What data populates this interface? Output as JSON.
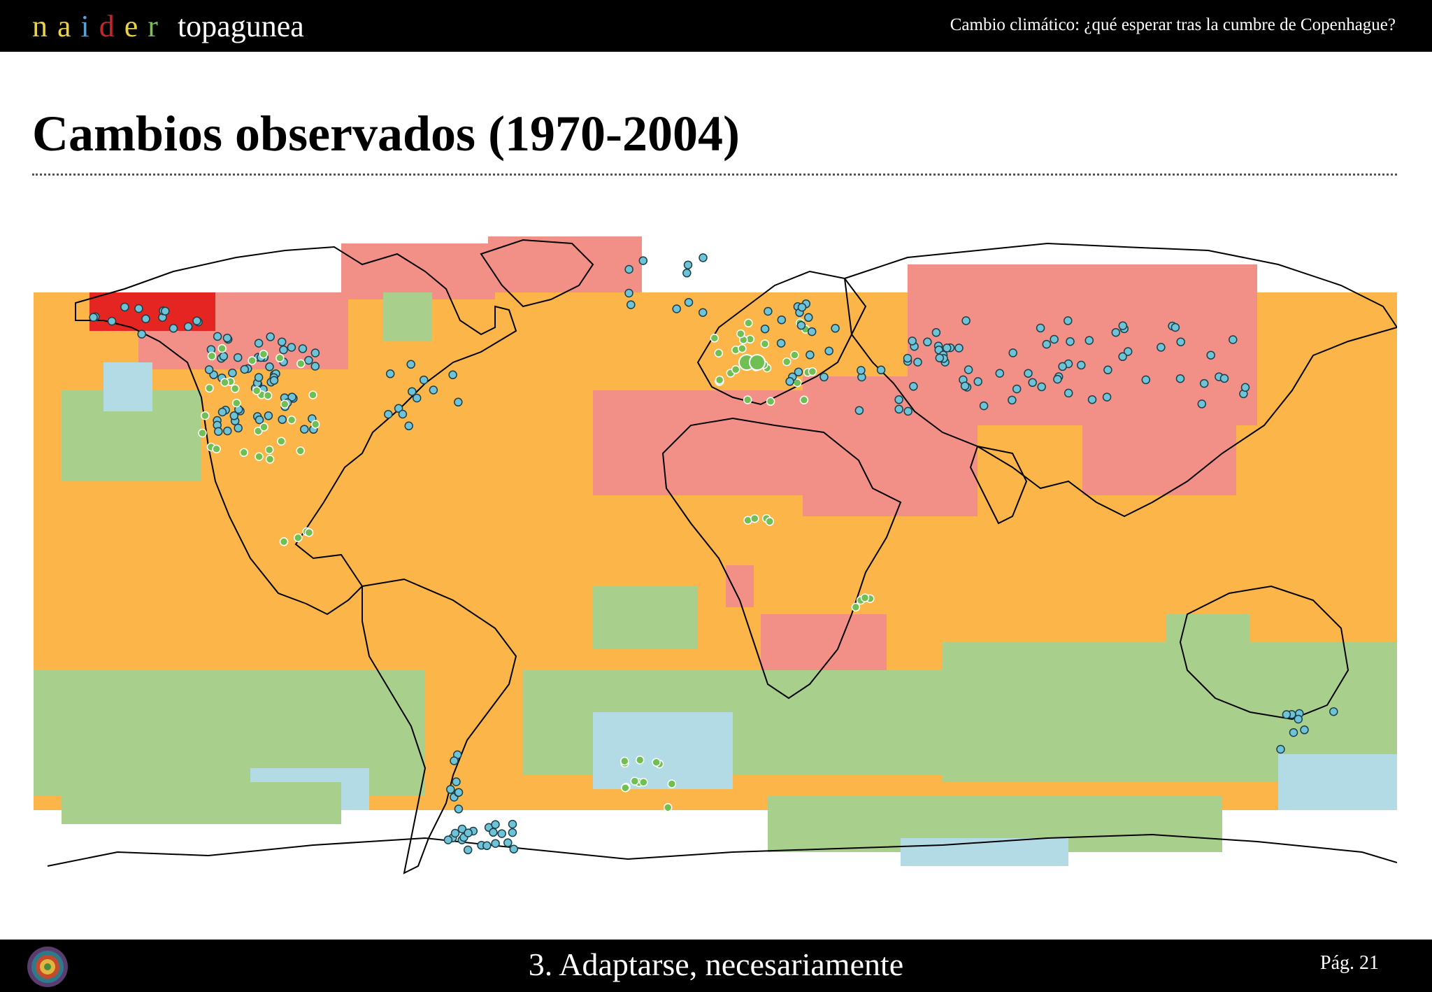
{
  "header": {
    "brand_letters": [
      {
        "char": "n",
        "color": "#e8d24a"
      },
      {
        "char": "a",
        "color": "#e8d24a"
      },
      {
        "char": "i",
        "color": "#5aa0d8"
      },
      {
        "char": "d",
        "color": "#c0282a"
      },
      {
        "char": "e",
        "color": "#e8d24a"
      },
      {
        "char": "r",
        "color": "#7cc05a"
      }
    ],
    "brand_name": "topagunea",
    "subtitle": "Cambio climático: ¿qué esperar tras la cumbre de Copenhague?"
  },
  "slide": {
    "title": "Cambios observados (1970-2004)"
  },
  "map": {
    "colors": {
      "background_orange": "#fbb549",
      "warming_pink": "#f29088",
      "strong_warming_red": "#e42521",
      "mild_green": "#a8d08c",
      "cooling_blue": "#b3dbe6",
      "no_data_white": "#ffffff",
      "physical_marker": "#6fc3d6",
      "biological_marker": "#6fbf53",
      "coastline": "#000000"
    }
  },
  "footer": {
    "section": "3. Adaptarse, necesariamente",
    "page": "Pág. 21"
  }
}
